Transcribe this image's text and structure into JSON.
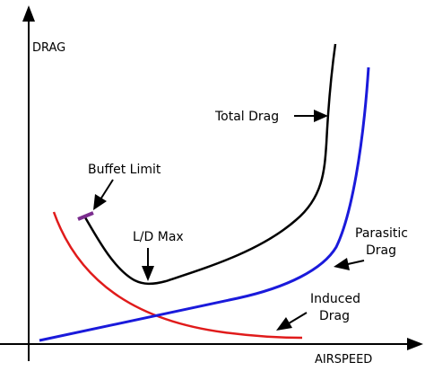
{
  "axes": {
    "y_label": "DRAG",
    "x_label": "AIRSPEED"
  },
  "labels": {
    "total_drag": "Total Drag",
    "buffet_limit": "Buffet Limit",
    "ld_max": "L/D Max",
    "parasitic_line1": "Parasitic",
    "parasitic_line2": "Drag",
    "induced_line1": "Induced",
    "induced_line2": "Drag"
  },
  "colors": {
    "total_drag": "#000000",
    "parasitic_drag": "#1a1adb",
    "induced_drag": "#e01b1b",
    "buffet_marker": "#7b2d8e",
    "axes": "#000000",
    "background": "#ffffff"
  }
}
